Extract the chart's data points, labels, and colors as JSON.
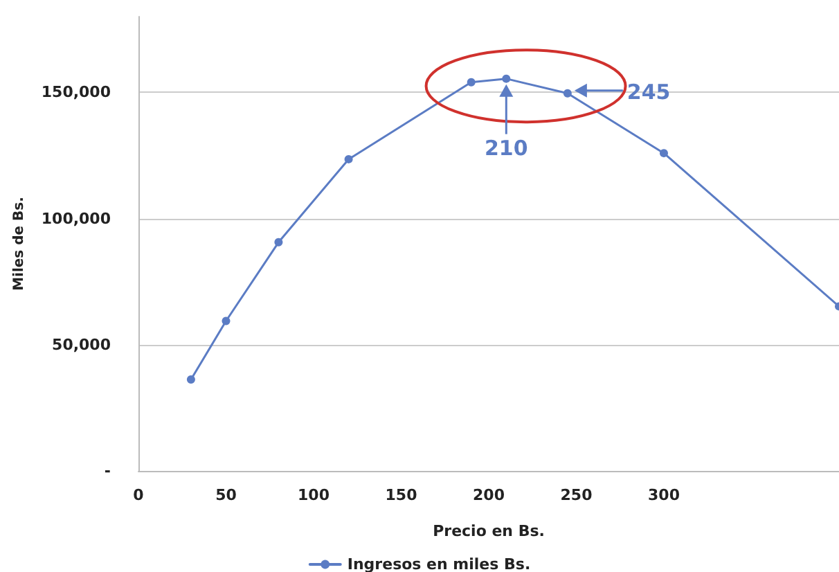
{
  "chart_data": {
    "type": "line",
    "xlabel": "Precio en Bs.",
    "ylabel": "Miles de Bs.",
    "x": [
      30,
      50,
      80,
      120,
      190,
      210,
      245,
      300,
      400
    ],
    "series": [
      {
        "name": "Ingresos en miles Bs.",
        "color": "#5b7cc4",
        "values": [
          36200,
          59400,
          90600,
          123500,
          154000,
          155400,
          149600,
          125900,
          65200
        ]
      }
    ],
    "xlim": [
      0,
      400
    ],
    "xticks": [
      0,
      50,
      100,
      150,
      200,
      250,
      300
    ],
    "ylim": [
      0,
      180000
    ],
    "yticks": [
      {
        "value": 0,
        "label": "-"
      },
      {
        "value": 50000,
        "label": "50,000"
      },
      {
        "value": 100000,
        "label": "100,000"
      },
      {
        "value": 150000,
        "label": "150,000"
      }
    ],
    "annotations": [
      {
        "text": "210",
        "x": 210,
        "y": 155400
      },
      {
        "text": "245",
        "x": 245,
        "y": 149600
      }
    ],
    "grid": "y",
    "legend": "bottom",
    "marker": "circle",
    "line_style": "solid"
  }
}
